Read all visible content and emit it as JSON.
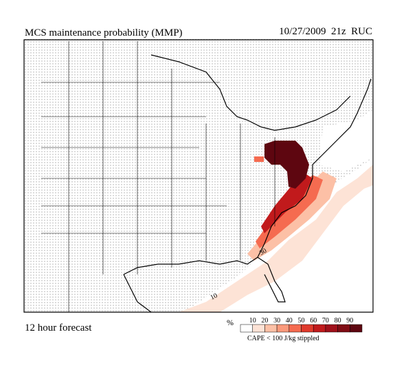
{
  "title": "MCS maintenance probability (MMP)",
  "valid_time": "10/27/2009  21z  RUC",
  "forecast": "12 hour forecast",
  "colorbar": {
    "unit": "%",
    "ticks": [
      10,
      20,
      30,
      40,
      50,
      60,
      70,
      80,
      90
    ],
    "colors": [
      "#ffffff",
      "#fde3d6",
      "#fcc0a6",
      "#fb9a7c",
      "#f56b50",
      "#e03a2c",
      "#c11a1c",
      "#a0101a",
      "#800c14",
      "#5e0610"
    ]
  },
  "note": "CAPE < 100 J/kg stippled",
  "contour_labels": [
    "10",
    "30"
  ]
}
